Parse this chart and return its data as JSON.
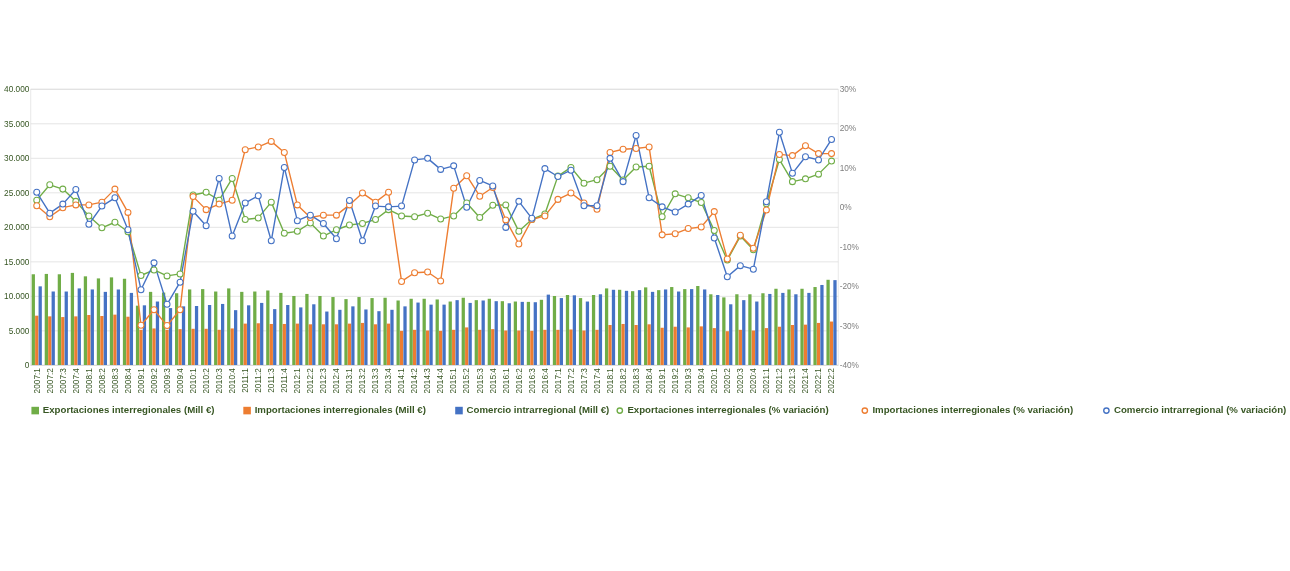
{
  "chart_data": {
    "type": "bar",
    "categories": [
      "2007:1",
      "2007:2",
      "2007:3",
      "2007:4",
      "2008:1",
      "2008:2",
      "2008:3",
      "2008:4",
      "2009:1",
      "2009:2",
      "2009:3",
      "2009:4",
      "2010:1",
      "2010:2",
      "2010:3",
      "2010:4",
      "2011:1",
      "2011:2",
      "2011:3",
      "2011:4",
      "2012:1",
      "2012:2",
      "2012:3",
      "2012:4",
      "2013:1",
      "2013:2",
      "2013:3",
      "2013:4",
      "2014:1",
      "2014:2",
      "2014:3",
      "2014:4",
      "2015:1",
      "2015:2",
      "2015:3",
      "2015:4",
      "2016:1",
      "2016:2",
      "2016:3",
      "2016:4",
      "2017:1",
      "2017:2",
      "2017:3",
      "2017:4",
      "2018:1",
      "2018:2",
      "2018:3",
      "2018:4",
      "2019:1",
      "2019:2",
      "2019:3",
      "2019:4",
      "2020:1",
      "2020:2",
      "2020:3",
      "2020:4",
      "2021:1",
      "2021:2",
      "2021:3",
      "2021:4",
      "2022:1",
      "2022:2"
    ],
    "series": [
      {
        "name": "Exportaciones interregionales (Mill €)",
        "color": "#70ad47",
        "values": [
          13150,
          13200,
          13150,
          13350,
          12850,
          12550,
          12700,
          12500,
          8600,
          10600,
          10500,
          10400,
          10950,
          11000,
          10650,
          11100,
          10600,
          10650,
          10800,
          10450,
          10000,
          10300,
          10000,
          9850,
          9550,
          9850,
          9700,
          9750,
          9350,
          9600,
          9600,
          9500,
          9200,
          9750,
          9400,
          9600,
          9250,
          9200,
          9150,
          9450,
          10000,
          10150,
          9700,
          10150,
          11100,
          10900,
          10700,
          11250,
          10850,
          11300,
          11000,
          11450,
          10250,
          9800,
          10250,
          10250,
          10400,
          11050,
          10950,
          11050,
          11300,
          12350
        ]
      },
      {
        "name": "Importaciones interregionales (Mill €)",
        "color": "#ed7d31",
        "values": [
          7150,
          7050,
          6950,
          7050,
          7250,
          7100,
          7300,
          7000,
          5100,
          5300,
          5100,
          5200,
          5250,
          5250,
          5100,
          5300,
          6000,
          6050,
          5950,
          5950,
          6000,
          5900,
          5900,
          5900,
          6000,
          6100,
          5900,
          6000,
          4950,
          5100,
          5000,
          4950,
          5100,
          5450,
          5100,
          5200,
          5000,
          5000,
          4950,
          5100,
          5100,
          5150,
          5000,
          5100,
          5800,
          5950,
          5800,
          5900,
          5400,
          5550,
          5450,
          5600,
          5350,
          4900,
          5100,
          5000,
          5350,
          5550,
          5800,
          5850,
          6100,
          6300
        ]
      },
      {
        "name": "Comercio intrarregional (Mill €)",
        "color": "#4472c4",
        "values": [
          11400,
          10650,
          10650,
          11100,
          10950,
          10600,
          10950,
          10450,
          8650,
          9200,
          8250,
          8500,
          8550,
          8700,
          8850,
          7950,
          8650,
          9000,
          8100,
          8700,
          8350,
          8800,
          7750,
          8000,
          8500,
          8050,
          7800,
          8000,
          8500,
          9050,
          8750,
          8750,
          9400,
          9000,
          9350,
          9250,
          8950,
          9150,
          9100,
          10200,
          9700,
          10100,
          9200,
          10250,
          10900,
          10750,
          10850,
          10600,
          10950,
          10650,
          11000,
          10950,
          10150,
          8800,
          9400,
          9200,
          10300,
          10450,
          10250,
          10450,
          11600,
          12300
        ]
      },
      {
        "name": "Exportaciones interregionales  (% variación)",
        "type": "line",
        "axis": "y2",
        "color": "#70ad47",
        "values": [
          1.8,
          5.7,
          4.6,
          1.5,
          -2.2,
          -5.2,
          -3.8,
          -6.2,
          -17.3,
          -15.9,
          -17.4,
          -16.9,
          3.1,
          3.8,
          1.8,
          7.3,
          -3.1,
          -2.7,
          1.3,
          -6.6,
          -6.1,
          -4.0,
          -7.3,
          -5.7,
          -4.5,
          -4.1,
          -3.1,
          -0.6,
          -2.2,
          -2.4,
          -1.5,
          -3.0,
          -2.2,
          1.1,
          -2.6,
          0.5,
          0.6,
          -6.1,
          -3.1,
          -1.7,
          7.9,
          10.1,
          6.1,
          7.0,
          10.4,
          6.9,
          10.2,
          10.4,
          -2.4,
          3.4,
          2.4,
          1.2,
          -5.9,
          -13.4,
          -7.3,
          -10.8,
          0.9,
          12.1,
          6.5,
          7.2,
          8.4,
          11.7
        ]
      },
      {
        "name": "Importaciones interregionales (% variación)",
        "type": "line",
        "axis": "y2",
        "color": "#ed7d31",
        "values": [
          0.4,
          -2.4,
          -0.1,
          0.6,
          0.6,
          1.3,
          4.6,
          -1.3,
          -29.9,
          -26.0,
          -30.0,
          -26.0,
          2.7,
          -0.6,
          0.8,
          1.8,
          14.6,
          15.3,
          16.7,
          13.9,
          0.6,
          -2.6,
          -2.0,
          -2.0,
          0.6,
          3.6,
          1.3,
          3.8,
          -18.8,
          -16.6,
          -16.4,
          -18.7,
          4.8,
          8.0,
          2.8,
          5.0,
          -3.2,
          -9.3,
          -3.1,
          -2.2,
          2.0,
          3.6,
          1.1,
          -0.5,
          13.9,
          14.7,
          14.9,
          15.3,
          -7.0,
          -6.7,
          -5.4,
          -5.0,
          -1.1,
          -13.1,
          -7.1,
          -10.4,
          -0.7,
          13.4,
          13.1,
          15.6,
          13.6,
          13.6
        ]
      },
      {
        "name": "Comercio intrarregional (% variación)",
        "type": "line",
        "axis": "y2",
        "color": "#4472c4",
        "values": [
          3.8,
          -1.5,
          0.8,
          4.5,
          -4.3,
          0.3,
          2.4,
          -5.7,
          -20.9,
          -14.1,
          -24.6,
          -19.0,
          -1.0,
          -4.7,
          7.3,
          -7.3,
          1.1,
          2.9,
          -8.5,
          10.1,
          -3.4,
          -2.0,
          -4.1,
          -8.0,
          1.7,
          -8.5,
          0.3,
          0.1,
          0.3,
          12.0,
          12.4,
          9.6,
          10.5,
          0.0,
          6.8,
          5.4,
          -5.1,
          1.5,
          -2.8,
          9.8,
          7.8,
          9.4,
          0.4,
          0.4,
          12.4,
          6.5,
          18.2,
          2.4,
          0.1,
          -1.2,
          0.8,
          3.0,
          -7.8,
          -17.6,
          -14.8,
          -15.7,
          1.4,
          19.0,
          8.6,
          12.8,
          12.0,
          17.2
        ]
      }
    ],
    "ylim": [
      0,
      40000
    ],
    "yticks": [
      0,
      {
        "value": 5000,
        "label": "5.000"
      },
      {
        "value": 10000,
        "label": "10.000"
      },
      {
        "value": 15000,
        "label": "15.000"
      },
      {
        "value": 20000,
        "label": "20.000"
      },
      {
        "value": 25000,
        "label": "25.000"
      },
      {
        "value": 30000,
        "label": "30.000"
      },
      {
        "value": 35000,
        "label": "35.000"
      },
      {
        "value": 40000,
        "label": "40.000"
      }
    ],
    "y2lim": [
      -40,
      30
    ],
    "y2ticks": [
      {
        "value": -40,
        "label": "-40%"
      },
      {
        "value": -30,
        "label": "-30%"
      },
      {
        "value": -20,
        "label": "-20%"
      },
      {
        "value": -10,
        "label": "-10%"
      },
      {
        "value": 0,
        "label": "0%"
      },
      {
        "value": 10,
        "label": "10%"
      },
      {
        "value": 20,
        "label": "20%"
      },
      {
        "value": 30,
        "label": "30%"
      }
    ],
    "grid": "y",
    "legend": "bottom",
    "marker": "circle",
    "line_style": "solid"
  }
}
